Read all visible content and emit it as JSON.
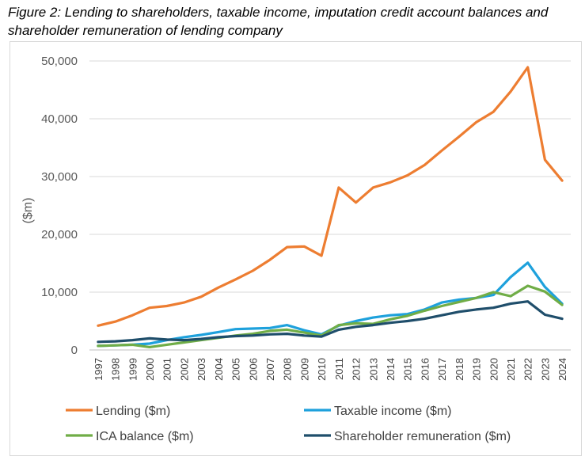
{
  "figure_title": "Figure 2: Lending to shareholders, taxable income, imputation credit account balances and shareholder remuneration of lending company",
  "chart_data": {
    "type": "line",
    "title": "Figure 2: Lending to shareholders, taxable income, imputation credit account balances and shareholder remuneration of lending company",
    "xlabel": "",
    "ylabel": "($m)",
    "ylim": [
      0,
      50000
    ],
    "yticks": [
      0,
      10000,
      20000,
      30000,
      40000,
      50000
    ],
    "ytick_labels": [
      "0",
      "10,000",
      "20,000",
      "30,000",
      "40,000",
      "50,000"
    ],
    "grid": "horizontal",
    "legend_position": "bottom",
    "categories": [
      "1997",
      "1998",
      "1999",
      "2000",
      "2001",
      "2002",
      "2003",
      "2004",
      "2005",
      "2006",
      "2007",
      "2008",
      "2009",
      "2010",
      "2011",
      "2012",
      "2013",
      "2014",
      "2015",
      "2016",
      "2017",
      "2018",
      "2019",
      "2020",
      "2021",
      "2022",
      "2023",
      "2024"
    ],
    "series": [
      {
        "name": "Lending ($m)",
        "color": "#ed7d31",
        "values": [
          4200,
          4900,
          6000,
          7300,
          7600,
          8200,
          9200,
          10800,
          12200,
          13700,
          15600,
          17800,
          17900,
          16300,
          28100,
          25500,
          28100,
          29000,
          30200,
          32000,
          34500,
          36900,
          39400,
          41200,
          44700,
          48900,
          32900,
          29300
        ]
      },
      {
        "name": "Taxable income ($m)",
        "color": "#1ea1dc",
        "values": [
          700,
          800,
          900,
          1100,
          1700,
          2200,
          2600,
          3100,
          3600,
          3700,
          3800,
          4300,
          3400,
          2700,
          4200,
          5000,
          5600,
          6000,
          6200,
          7000,
          8200,
          8700,
          9000,
          9500,
          12600,
          15100,
          10900,
          8000
        ]
      },
      {
        "name": "ICA balance ($m)",
        "color": "#70ad47",
        "values": [
          700,
          800,
          900,
          500,
          900,
          1300,
          1700,
          2100,
          2500,
          2800,
          3300,
          3500,
          3000,
          2500,
          4300,
          4600,
          4500,
          5300,
          5900,
          6800,
          7600,
          8300,
          9000,
          10000,
          9300,
          11100,
          10100,
          7800
        ]
      },
      {
        "name": "Shareholder remuneration ($m)",
        "color": "#1f4e6b",
        "values": [
          1400,
          1500,
          1700,
          2000,
          1800,
          1700,
          1900,
          2200,
          2400,
          2500,
          2700,
          2800,
          2500,
          2300,
          3500,
          4000,
          4300,
          4700,
          5000,
          5400,
          6000,
          6600,
          7000,
          7300,
          8000,
          8400,
          6100,
          5400
        ]
      }
    ]
  }
}
